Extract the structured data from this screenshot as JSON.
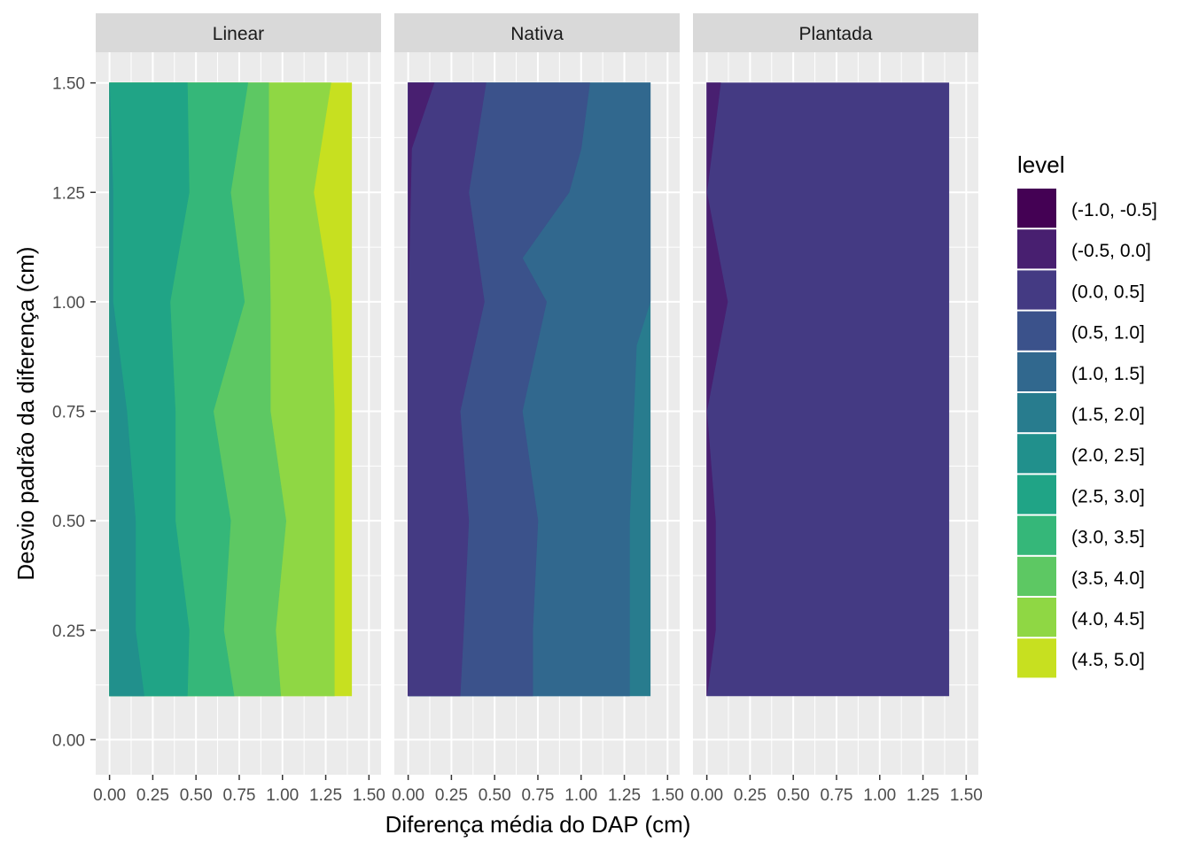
{
  "chart_data": {
    "type": "filled_contour",
    "xlabel": "Diferença média do DAP (cm)",
    "ylabel": "Desvio padrão da diferença (cm)",
    "xlim": [
      -0.08,
      1.57
    ],
    "ylim": [
      -0.08,
      1.57
    ],
    "x_ticks": [
      0.0,
      0.25,
      0.5,
      0.75,
      1.0,
      1.25,
      1.5
    ],
    "x_tick_labels": [
      "0.00",
      "0.25",
      "0.50",
      "0.75",
      "1.00",
      "1.25",
      "1.50"
    ],
    "y_ticks": [
      0.0,
      0.25,
      0.5,
      0.75,
      1.0,
      1.25,
      1.5
    ],
    "y_tick_labels": [
      "0.00",
      "0.25",
      "0.50",
      "0.75",
      "1.00",
      "1.25",
      "1.50"
    ],
    "grid": true,
    "legend": {
      "title": "level",
      "position": "right",
      "levels": [
        {
          "label": "(-1.0, -0.5]",
          "color": "#440154"
        },
        {
          "label": "(-0.5, 0.0]",
          "color": "#481F70"
        },
        {
          "label": "(0.0, 0.5]",
          "color": "#443A83"
        },
        {
          "label": "(0.5, 1.0]",
          "color": "#3B528B"
        },
        {
          "label": "(1.0, 1.5]",
          "color": "#31688E"
        },
        {
          "label": "(1.5, 2.0]",
          "color": "#287C8E"
        },
        {
          "label": "(2.0, 2.5]",
          "color": "#21908C"
        },
        {
          "label": "(2.5, 3.0]",
          "color": "#20A486"
        },
        {
          "label": "(3.0, 3.5]",
          "color": "#35B779"
        },
        {
          "label": "(3.5, 4.0]",
          "color": "#5DC863"
        },
        {
          "label": "(4.0, 4.5]",
          "color": "#8FD744"
        },
        {
          "label": "(4.5, 5.0]",
          "color": "#C7E020"
        }
      ]
    },
    "panels": [
      {
        "name": "Linear",
        "regions": [
          {
            "level": "(2.0, 2.5]",
            "color": "#21908C",
            "x_right": [
              [
                1.5,
                0.0
              ],
              [
                1.25,
                0.02
              ],
              [
                1.0,
                0.02
              ],
              [
                0.75,
                0.1
              ],
              [
                0.5,
                0.15
              ],
              [
                0.25,
                0.15
              ],
              [
                0.1,
                0.2
              ]
            ]
          },
          {
            "level": "(2.5, 3.0]",
            "color": "#20A486",
            "x_right": [
              [
                1.5,
                0.45
              ],
              [
                1.25,
                0.46
              ],
              [
                1.0,
                0.35
              ],
              [
                0.75,
                0.38
              ],
              [
                0.5,
                0.38
              ],
              [
                0.25,
                0.46
              ],
              [
                0.1,
                0.45
              ]
            ]
          },
          {
            "level": "(3.0, 3.5]",
            "color": "#35B779",
            "x_right": [
              [
                1.5,
                0.8
              ],
              [
                1.25,
                0.7
              ],
              [
                1.0,
                0.78
              ],
              [
                0.75,
                0.6
              ],
              [
                0.5,
                0.7
              ],
              [
                0.25,
                0.66
              ],
              [
                0.1,
                0.72
              ]
            ]
          },
          {
            "level": "(3.5, 4.0]",
            "color": "#5DC863",
            "x_right": [
              [
                1.5,
                0.92
              ],
              [
                1.25,
                0.92
              ],
              [
                1.0,
                0.93
              ],
              [
                0.75,
                0.93
              ],
              [
                0.5,
                1.02
              ],
              [
                0.25,
                0.96
              ],
              [
                0.1,
                0.99
              ]
            ]
          },
          {
            "level": "(4.0, 4.5]",
            "color": "#8FD744",
            "x_right": [
              [
                1.5,
                1.28
              ],
              [
                1.25,
                1.18
              ],
              [
                1.0,
                1.28
              ],
              [
                0.75,
                1.3
              ],
              [
                0.5,
                1.3
              ],
              [
                0.25,
                1.3
              ],
              [
                0.1,
                1.3
              ]
            ]
          },
          {
            "level": "(4.5, 5.0]",
            "color": "#C7E020",
            "x_right": [
              [
                1.5,
                1.4
              ],
              [
                0.1,
                1.4
              ]
            ]
          }
        ]
      },
      {
        "name": "Nativa",
        "regions": [
          {
            "level": "(-0.5, 0.0]",
            "color": "#481F70",
            "x_right": [
              [
                1.5,
                0.15
              ],
              [
                1.35,
                0.02
              ],
              [
                1.0,
                0.0
              ],
              [
                0.1,
                0.0
              ]
            ]
          },
          {
            "level": "(0.0, 0.5]",
            "color": "#443A83",
            "x_right": [
              [
                1.5,
                0.45
              ],
              [
                1.25,
                0.35
              ],
              [
                1.0,
                0.44
              ],
              [
                0.75,
                0.3
              ],
              [
                0.5,
                0.35
              ],
              [
                0.25,
                0.32
              ],
              [
                0.1,
                0.3
              ]
            ]
          },
          {
            "level": "(0.5, 1.0]",
            "color": "#3B528B",
            "x_right": [
              [
                1.5,
                1.05
              ],
              [
                1.35,
                1.0
              ],
              [
                1.25,
                0.93
              ],
              [
                1.1,
                0.66
              ],
              [
                1.0,
                0.8
              ],
              [
                0.75,
                0.66
              ],
              [
                0.5,
                0.75
              ],
              [
                0.25,
                0.72
              ],
              [
                0.1,
                0.72
              ]
            ]
          },
          {
            "level": "(1.0, 1.5]",
            "color": "#31688E",
            "x_right": [
              [
                1.5,
                1.4
              ],
              [
                1.0,
                1.4
              ],
              [
                0.9,
                1.32
              ],
              [
                0.5,
                1.28
              ],
              [
                0.1,
                1.28
              ]
            ]
          },
          {
            "level": "(1.5, 2.0]",
            "color": "#287C8E",
            "x_right": [
              [
                1.5,
                1.4
              ],
              [
                0.1,
                1.4
              ]
            ]
          }
        ]
      },
      {
        "name": "Plantada",
        "regions": [
          {
            "level": "(-0.5, 0.0]",
            "color": "#481F70",
            "x_right": [
              [
                1.5,
                0.08
              ],
              [
                1.25,
                0.0
              ],
              [
                1.0,
                0.12
              ],
              [
                0.75,
                0.0
              ],
              [
                0.5,
                0.05
              ],
              [
                0.25,
                0.05
              ],
              [
                0.1,
                0.0
              ]
            ]
          },
          {
            "level": "(0.0, 0.5]",
            "color": "#443A83",
            "x_right": [
              [
                1.5,
                1.4
              ],
              [
                0.1,
                1.4
              ]
            ]
          }
        ]
      }
    ],
    "data_extent": {
      "x": [
        0.0,
        1.4
      ],
      "y": [
        0.1,
        1.5
      ]
    }
  }
}
